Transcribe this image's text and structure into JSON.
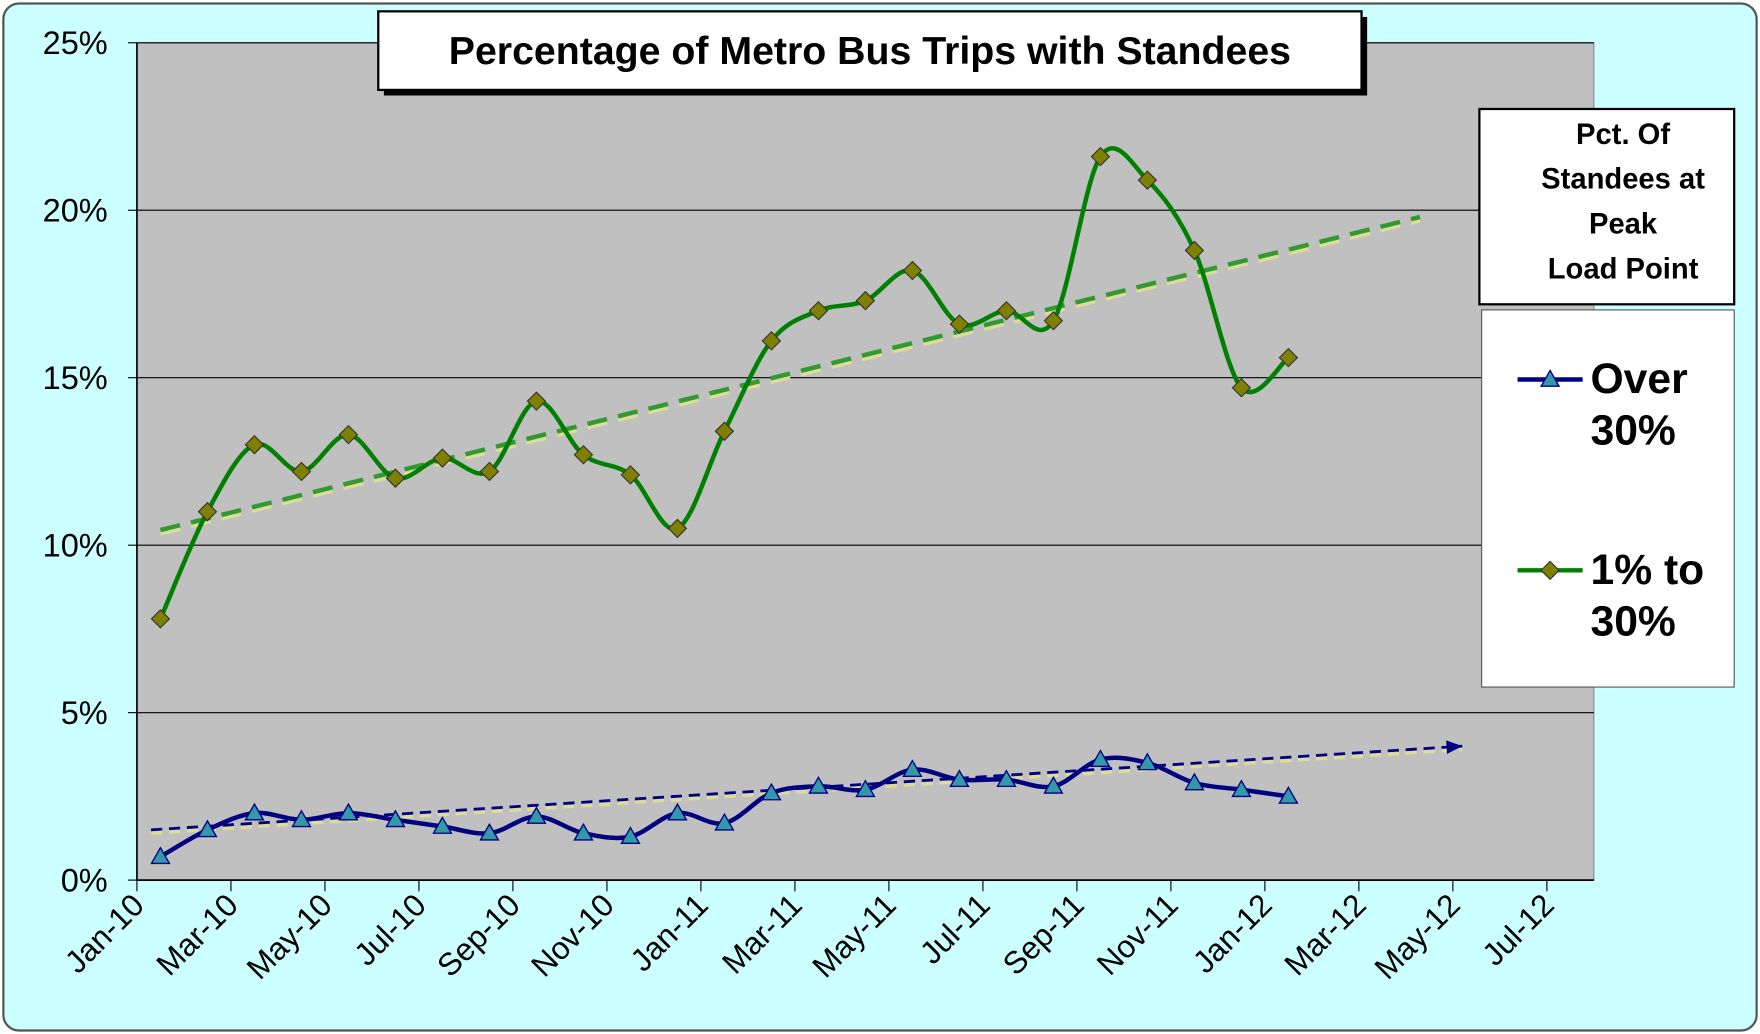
{
  "chart_data": {
    "type": "line",
    "title": "Percentage of Metro Bus Trips with Standees",
    "legend_title": [
      "Pct. Of",
      "Standees at",
      "Peak",
      "Load Point"
    ],
    "legend": "right",
    "grid": true,
    "x": [
      0.5,
      1.5,
      2.5,
      3.5,
      4.5,
      5.5,
      6.5,
      7.5,
      8.5,
      9.5,
      10.5,
      11.5,
      12.5,
      13.5,
      14.5,
      15.5,
      16.5,
      17.5,
      18.5,
      19.5,
      20.5,
      21.5,
      22.5,
      23.5,
      24.5
    ],
    "xlim": [
      0,
      31
    ],
    "xticks": [
      {
        "value": 0,
        "label": "Jan-10"
      },
      {
        "value": 2,
        "label": "Mar-10"
      },
      {
        "value": 4,
        "label": "May-10"
      },
      {
        "value": 6,
        "label": "Jul-10"
      },
      {
        "value": 8,
        "label": "Sep-10"
      },
      {
        "value": 10,
        "label": "Nov-10"
      },
      {
        "value": 12,
        "label": "Jan-11"
      },
      {
        "value": 14,
        "label": "Mar-11"
      },
      {
        "value": 16,
        "label": "May-11"
      },
      {
        "value": 18,
        "label": "Jul-11"
      },
      {
        "value": 20,
        "label": "Sep-11"
      },
      {
        "value": 22,
        "label": "Nov-11"
      },
      {
        "value": 24,
        "label": "Jan-12"
      },
      {
        "value": 26,
        "label": "Mar-12"
      },
      {
        "value": 28,
        "label": "May-12"
      },
      {
        "value": 30,
        "label": "Jul-12"
      }
    ],
    "ylim": [
      0,
      25
    ],
    "yticks": [
      {
        "value": 0,
        "label": "0%"
      },
      {
        "value": 5,
        "label": "5%"
      },
      {
        "value": 10,
        "label": "10%"
      },
      {
        "value": 15,
        "label": "15%"
      },
      {
        "value": 20,
        "label": "20%"
      },
      {
        "value": 25,
        "label": "25%"
      }
    ],
    "series": [
      {
        "name": "Over 30%",
        "color": "#000080",
        "marker": "triangle",
        "marker_color": "#3399aa",
        "values": [
          0.7,
          1.5,
          2.0,
          1.8,
          2.0,
          1.8,
          1.6,
          1.4,
          1.9,
          1.4,
          1.3,
          2.0,
          1.7,
          2.6,
          2.8,
          2.7,
          3.3,
          3.0,
          3.0,
          2.8,
          3.6,
          3.5,
          2.9,
          2.7,
          2.5
        ]
      },
      {
        "name": "1% to 30%",
        "color": "#008000",
        "marker": "diamond",
        "marker_color": "#808000",
        "values": [
          7.8,
          11.0,
          13.0,
          12.2,
          13.3,
          12.0,
          12.6,
          12.2,
          14.3,
          12.7,
          12.1,
          10.5,
          13.4,
          16.1,
          17.0,
          17.3,
          18.2,
          16.6,
          17.0,
          16.7,
          21.6,
          20.9,
          18.8,
          14.7,
          15.6
        ]
      }
    ],
    "trendlines": [
      {
        "color": "#000080",
        "x": [
          0.3,
          28.2
        ],
        "values": [
          1.5,
          4.0
        ]
      },
      {
        "color": "#339933",
        "x": [
          0.5,
          27.3
        ],
        "values": [
          10.45,
          19.8
        ]
      }
    ]
  }
}
